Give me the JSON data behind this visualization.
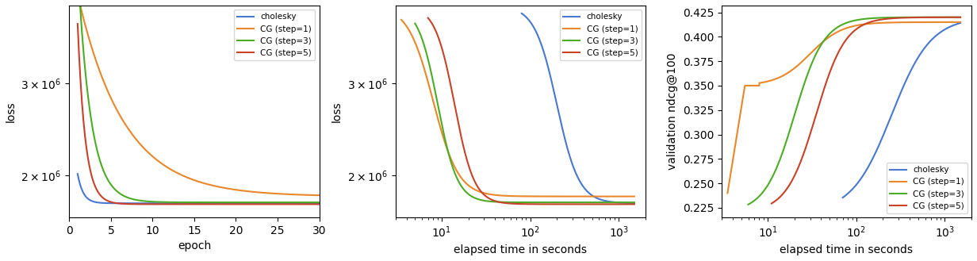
{
  "colors": {
    "cholesky": "#4878cf",
    "cg1": "#e8882a",
    "cg3": "#4dac26",
    "cg5": "#c8422a"
  },
  "legend_labels": [
    "cholesky",
    "CG (step=1)",
    "CG (step=3)",
    "CG (step=5)"
  ],
  "plot1": {
    "xlabel": "epoch",
    "ylabel": "loss",
    "xlim": [
      0,
      30
    ],
    "ylim_bottom": 1540000,
    "ylim_top": 3850000
  },
  "plot2": {
    "xlabel": "elapsed time in seconds",
    "ylabel": "loss",
    "xlim": [
      3,
      2000
    ],
    "ylim_bottom": 1540000,
    "ylim_top": 3850000
  },
  "plot3": {
    "xlabel": "elapsed time in seconds",
    "ylabel": "validation ndcg@100",
    "xlim": [
      3,
      2000
    ],
    "ylim": [
      0.215,
      0.432
    ]
  }
}
